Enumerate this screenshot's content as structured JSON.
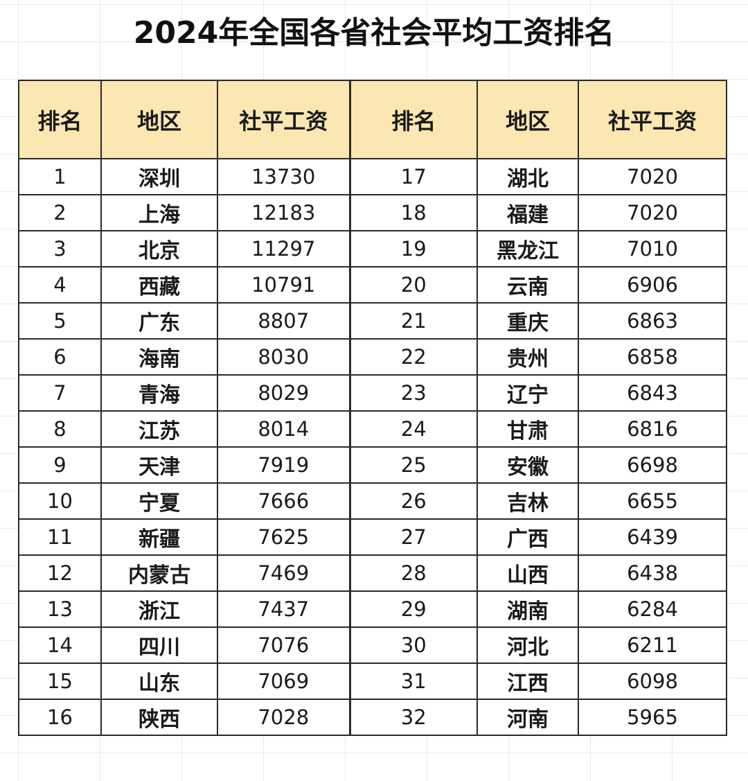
{
  "title": "2024年全国各省社会平均工资排名",
  "headers": [
    "排名",
    "地区",
    "社平工资",
    "排名",
    "地区",
    "社平工资"
  ],
  "rows": [
    {
      "rank_a": "1",
      "region_a": "深圳",
      "wage_a": "13730",
      "rank_b": "17",
      "region_b": "湖北",
      "wage_b": "7020"
    },
    {
      "rank_a": "2",
      "region_a": "上海",
      "wage_a": "12183",
      "rank_b": "18",
      "region_b": "福建",
      "wage_b": "7020"
    },
    {
      "rank_a": "3",
      "region_a": "北京",
      "wage_a": "11297",
      "rank_b": "19",
      "region_b": "黑龙江",
      "wage_b": "7010"
    },
    {
      "rank_a": "4",
      "region_a": "西藏",
      "wage_a": "10791",
      "rank_b": "20",
      "region_b": "云南",
      "wage_b": "6906"
    },
    {
      "rank_a": "5",
      "region_a": "广东",
      "wage_a": "8807",
      "rank_b": "21",
      "region_b": "重庆",
      "wage_b": "6863"
    },
    {
      "rank_a": "6",
      "region_a": "海南",
      "wage_a": "8030",
      "rank_b": "22",
      "region_b": "贵州",
      "wage_b": "6858"
    },
    {
      "rank_a": "7",
      "region_a": "青海",
      "wage_a": "8029",
      "rank_b": "23",
      "region_b": "辽宁",
      "wage_b": "6843"
    },
    {
      "rank_a": "8",
      "region_a": "江苏",
      "wage_a": "8014",
      "rank_b": "24",
      "region_b": "甘肃",
      "wage_b": "6816"
    },
    {
      "rank_a": "9",
      "region_a": "天津",
      "wage_a": "7919",
      "rank_b": "25",
      "region_b": "安徽",
      "wage_b": "6698"
    },
    {
      "rank_a": "10",
      "region_a": "宁夏",
      "wage_a": "7666",
      "rank_b": "26",
      "region_b": "吉林",
      "wage_b": "6655"
    },
    {
      "rank_a": "11",
      "region_a": "新疆",
      "wage_a": "7625",
      "rank_b": "27",
      "region_b": "广西",
      "wage_b": "6439"
    },
    {
      "rank_a": "12",
      "region_a": "内蒙古",
      "wage_a": "7469",
      "rank_b": "28",
      "region_b": "山西",
      "wage_b": "6438"
    },
    {
      "rank_a": "13",
      "region_a": "浙江",
      "wage_a": "7437",
      "rank_b": "29",
      "region_b": "湖南",
      "wage_b": "6284"
    },
    {
      "rank_a": "14",
      "region_a": "四川",
      "wage_a": "7076",
      "rank_b": "30",
      "region_b": "河北",
      "wage_b": "6211"
    },
    {
      "rank_a": "15",
      "region_a": "山东",
      "wage_a": "7069",
      "rank_b": "31",
      "region_b": "江西",
      "wage_b": "6098"
    },
    {
      "rank_a": "16",
      "region_a": "陕西",
      "wage_a": "7028",
      "rank_b": "32",
      "region_b": "河南",
      "wage_b": "5965"
    }
  ],
  "colors": {
    "header_background": "#fbe7b2",
    "border": "#2a2a2a",
    "text": "#1a1a1a"
  }
}
